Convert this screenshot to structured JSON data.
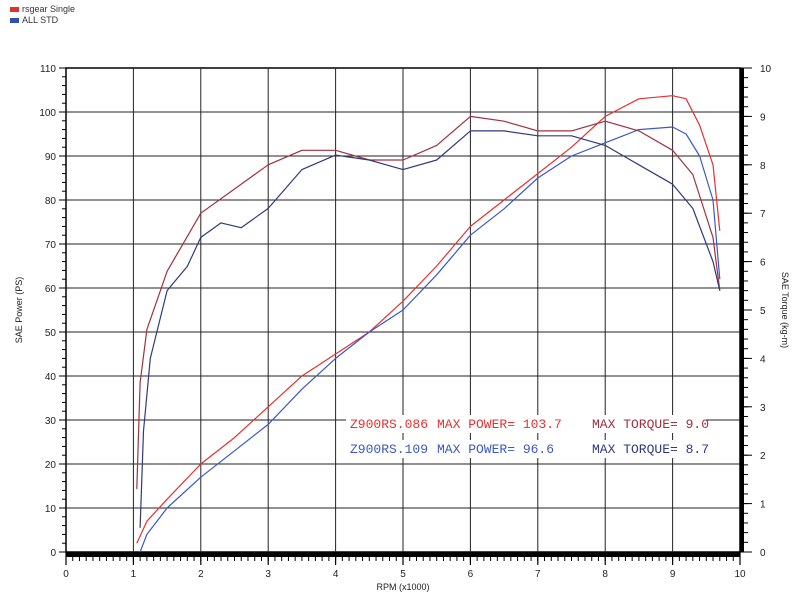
{
  "chart_data": {
    "type": "line",
    "title": "",
    "xlabel": "RPM (x1000)",
    "ylabel": "SAE Power (PS)",
    "y2label": "SAE Torque (kg-m)",
    "xlim": [
      0,
      10
    ],
    "ylim": [
      0,
      110
    ],
    "y2lim": [
      0,
      10
    ],
    "xticks": [
      "0",
      "1",
      "2",
      "3",
      "4",
      "5",
      "6",
      "7",
      "8",
      "9",
      "10"
    ],
    "yticks": [
      "0",
      "10",
      "20",
      "30",
      "40",
      "50",
      "60",
      "70",
      "80",
      "90",
      "100",
      "110"
    ],
    "y2ticks": [
      "0",
      "1",
      "2",
      "3",
      "4",
      "5",
      "6",
      "7",
      "8",
      "9",
      "10"
    ],
    "grid": true,
    "legend": [
      {
        "name": "rsgear Single",
        "color": "#e03030"
      },
      {
        "name": "ALL STD",
        "color": "#3050b0"
      }
    ],
    "series": [
      {
        "name": "rsgear Single power",
        "axis": "left",
        "color": "#e83030",
        "x": [
          1.05,
          1.2,
          1.5,
          2,
          2.5,
          3,
          3.5,
          4,
          4.5,
          5,
          5.5,
          6,
          6.5,
          7,
          7.5,
          8,
          8.5,
          9,
          9.2,
          9.4,
          9.6,
          9.7
        ],
        "y": [
          2,
          7,
          12,
          20,
          26,
          33,
          40,
          45,
          50,
          57,
          65,
          74,
          80,
          86,
          92,
          99,
          103,
          103.7,
          103,
          97,
          88,
          73
        ]
      },
      {
        "name": "ALL STD power",
        "axis": "left",
        "color": "#3a58c8",
        "x": [
          1.1,
          1.2,
          1.5,
          2,
          2.5,
          3,
          3.5,
          4,
          4.5,
          5,
          5.5,
          6,
          6.5,
          7,
          7.5,
          8,
          8.5,
          9,
          9.2,
          9.4,
          9.6,
          9.7
        ],
        "y": [
          0,
          4,
          10,
          17,
          23,
          29,
          37,
          44,
          50,
          55,
          63,
          72,
          78,
          85,
          90,
          93,
          96,
          96.6,
          95,
          90,
          80,
          62
        ]
      },
      {
        "name": "rsgear Single torque",
        "axis": "right",
        "color": "#a03040",
        "x": [
          1.05,
          1.1,
          1.2,
          1.5,
          2,
          2.5,
          3,
          3.5,
          4,
          4.5,
          5,
          5.5,
          6,
          6.5,
          7,
          7.5,
          8,
          8.5,
          9,
          9.3,
          9.6,
          9.7
        ],
        "y": [
          1.3,
          3.5,
          4.6,
          5.8,
          7.0,
          7.5,
          8.0,
          8.3,
          8.3,
          8.1,
          8.1,
          8.4,
          9.0,
          8.9,
          8.7,
          8.7,
          8.9,
          8.7,
          8.3,
          7.8,
          6.5,
          5.4
        ]
      },
      {
        "name": "ALL STD torque",
        "axis": "right",
        "color": "#303880",
        "x": [
          1.1,
          1.15,
          1.25,
          1.5,
          1.8,
          2,
          2.3,
          2.6,
          3,
          3.5,
          4,
          4.5,
          5,
          5.5,
          6,
          6.5,
          7,
          7.5,
          8,
          8.5,
          9,
          9.3,
          9.6,
          9.7
        ],
        "y": [
          0.5,
          2.5,
          4.0,
          5.4,
          5.9,
          6.5,
          6.8,
          6.7,
          7.1,
          7.9,
          8.2,
          8.1,
          7.9,
          8.1,
          8.7,
          8.7,
          8.6,
          8.6,
          8.4,
          8.0,
          7.6,
          7.1,
          6.0,
          5.4
        ]
      }
    ],
    "annotations": [
      {
        "run": "Z900RS.086",
        "power": "MAX POWER= 103.7",
        "torque": "MAX TORQUE= 9.0",
        "color": "#e83030",
        "tcolor": "#a03040"
      },
      {
        "run": "Z900RS.109",
        "power": "MAX POWER= 96.6",
        "torque": "MAX TORQUE= 8.7",
        "color": "#3a58c8",
        "tcolor": "#303880"
      }
    ]
  }
}
